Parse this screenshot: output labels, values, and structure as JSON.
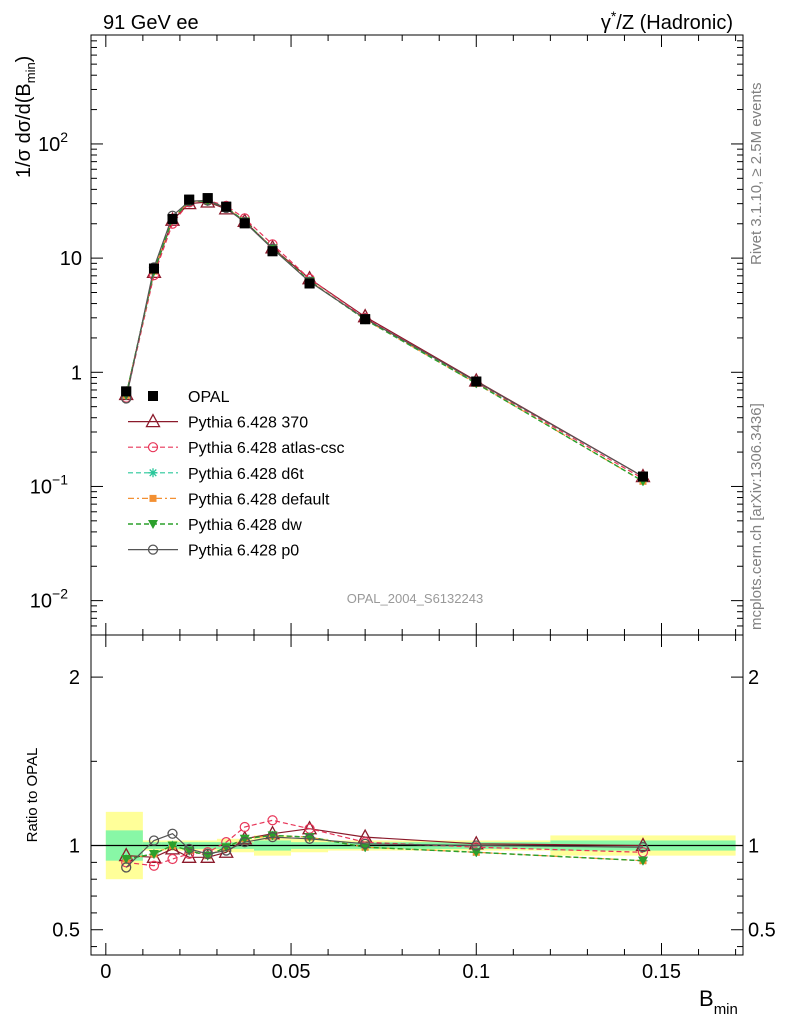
{
  "header": {
    "left": "91 GeV ee",
    "right_html_parts": [
      "γ",
      "*",
      "/Z (Hadronic)"
    ]
  },
  "side_text": {
    "top": "Rivet 3.1.10, ≥ 2.5M events",
    "bottom": "mcplots.cern.ch [arXiv:1306.3436]"
  },
  "analysis_id": "OPAL_2004_S6132243",
  "colors": {
    "OPAL": "#000000",
    "p370": "#8b1a2b",
    "atlas": "#e8375a",
    "d6t": "#29c79a",
    "default": "#f39032",
    "dw": "#2ca02c",
    "p0": "#555555",
    "band_stat": "#88f7a6",
    "band_tot": "#ffff99"
  },
  "chart_data": [
    {
      "type": "line",
      "title": "",
      "ylabel": "1/σ dσ/d(B_min)",
      "yscale": "log",
      "ylim": [
        0.005,
        900
      ],
      "xlim": [
        -0.004,
        0.172
      ],
      "ytick_labels": [
        "10^-2",
        "10^-1",
        "1",
        "10",
        "10^2"
      ],
      "legend_position": "lower-left",
      "x": [
        0.0055,
        0.013,
        0.018,
        0.0225,
        0.0275,
        0.0325,
        0.0375,
        0.045,
        0.055,
        0.07,
        0.1,
        0.145
      ],
      "series": [
        {
          "name": "OPAL",
          "key": "OPAL",
          "style": "data",
          "values": [
            0.68,
            8.1,
            22.0,
            32.5,
            33.5,
            28.2,
            20.2,
            11.5,
            6.0,
            2.92,
            0.83,
            0.122
          ]
        },
        {
          "name": "Pythia 6.428 370",
          "key": "p370",
          "style": "triangle",
          "values": [
            0.64,
            7.5,
            21.5,
            30.0,
            31.0,
            27.0,
            21.0,
            12.3,
            6.6,
            3.07,
            0.84,
            0.122
          ]
        },
        {
          "name": "Pythia 6.428 atlas-csc",
          "key": "atlas",
          "style": "circle",
          "values": [
            0.6,
            7.1,
            20.0,
            30.8,
            32.0,
            28.7,
            22.3,
            13.2,
            6.6,
            3.0,
            0.82,
            0.117
          ]
        },
        {
          "name": "Pythia 6.428 d6t",
          "key": "d6t",
          "style": "star",
          "values": [
            0.63,
            7.7,
            22.0,
            31.5,
            31.5,
            27.8,
            21.0,
            12.2,
            6.3,
            2.9,
            0.8,
            0.111
          ]
        },
        {
          "name": "Pythia 6.428 default",
          "key": "default",
          "style": "square",
          "values": [
            0.63,
            7.7,
            22.0,
            31.5,
            31.5,
            27.8,
            21.0,
            12.2,
            6.3,
            2.9,
            0.8,
            0.111
          ]
        },
        {
          "name": "Pythia 6.428 dw",
          "key": "dw",
          "style": "tri-down",
          "values": [
            0.63,
            7.7,
            22.0,
            31.5,
            31.5,
            27.8,
            21.0,
            12.2,
            6.3,
            2.9,
            0.8,
            0.111
          ]
        },
        {
          "name": "Pythia 6.428 p0",
          "key": "p0",
          "style": "circle-solid",
          "values": [
            0.59,
            8.3,
            23.5,
            31.5,
            32.0,
            27.5,
            20.6,
            12.1,
            6.2,
            2.95,
            0.83,
            0.122
          ]
        }
      ]
    },
    {
      "type": "line",
      "title": "",
      "ylabel": "Ratio to OPAL",
      "xlabel": "B_min",
      "ylim": [
        0.35,
        2.25
      ],
      "xlim": [
        -0.004,
        0.172
      ],
      "ytick_labels": [
        "0.5",
        "1",
        "2"
      ],
      "xtick_labels": [
        "0",
        "0.05",
        "0.1",
        "0.15"
      ],
      "x": [
        0.0055,
        0.013,
        0.018,
        0.0225,
        0.0275,
        0.0325,
        0.0375,
        0.045,
        0.055,
        0.07,
        0.1,
        0.145
      ],
      "bands": {
        "edges": [
          0,
          0.01,
          0.015,
          0.02,
          0.025,
          0.03,
          0.035,
          0.04,
          0.05,
          0.06,
          0.08,
          0.12,
          0.17
        ],
        "stat": [
          0.09,
          0.02,
          0.02,
          0.02,
          0.02,
          0.02,
          0.02,
          0.03,
          0.02,
          0.02,
          0.02,
          0.03
        ],
        "total": [
          0.2,
          0.03,
          0.03,
          0.03,
          0.03,
          0.04,
          0.04,
          0.06,
          0.04,
          0.03,
          0.03,
          0.06
        ]
      },
      "series": [
        {
          "name": "Pythia 6.428 370",
          "key": "p370",
          "style": "triangle",
          "values": [
            0.94,
            0.93,
            0.98,
            0.93,
            0.93,
            0.96,
            1.04,
            1.07,
            1.1,
            1.05,
            1.01,
            1.0
          ]
        },
        {
          "name": "Pythia 6.428 atlas-csc",
          "key": "atlas",
          "style": "circle",
          "values": [
            0.9,
            0.88,
            0.92,
            0.95,
            0.96,
            1.02,
            1.11,
            1.15,
            1.1,
            1.02,
            0.99,
            0.96
          ]
        },
        {
          "name": "Pythia 6.428 d6t",
          "key": "d6t",
          "style": "star",
          "values": [
            0.92,
            0.95,
            1.0,
            0.97,
            0.94,
            0.99,
            1.04,
            1.06,
            1.05,
            0.99,
            0.96,
            0.91
          ]
        },
        {
          "name": "Pythia 6.428 default",
          "key": "default",
          "style": "square",
          "values": [
            0.92,
            0.95,
            1.0,
            0.97,
            0.94,
            0.99,
            1.04,
            1.06,
            1.05,
            0.99,
            0.96,
            0.91
          ]
        },
        {
          "name": "Pythia 6.428 dw",
          "key": "dw",
          "style": "tri-down",
          "values": [
            0.92,
            0.95,
            1.0,
            0.97,
            0.94,
            0.99,
            1.04,
            1.06,
            1.05,
            0.99,
            0.96,
            0.91
          ]
        },
        {
          "name": "Pythia 6.428 p0",
          "key": "p0",
          "style": "circle-solid",
          "values": [
            0.87,
            1.03,
            1.07,
            0.98,
            0.95,
            0.97,
            1.02,
            1.05,
            1.04,
            1.01,
            1.0,
            0.99
          ]
        }
      ]
    }
  ]
}
